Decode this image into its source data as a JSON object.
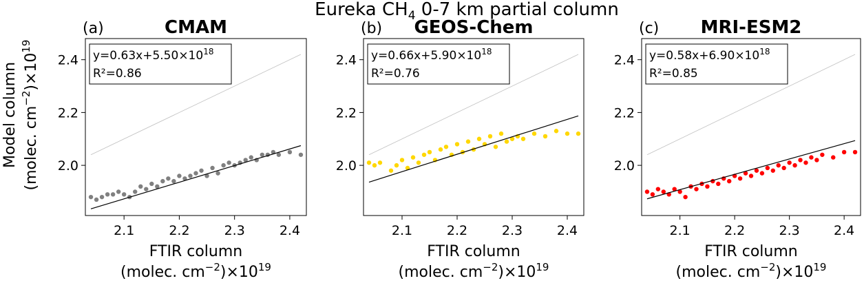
{
  "figure": {
    "title_prefix": "Eureka CH",
    "title_sub": "4",
    "title_suffix": " 0-7 km partial column",
    "ylabel_line1": "Model column",
    "ylabel_line2": "(molec. cm",
    "ylabel_line2_sup": "−2",
    "ylabel_line2_rest": ")×10",
    "ylabel_line2_exp": "19",
    "xlabel_line1": "FTIR column",
    "xlabel_line2": "(molec. cm",
    "xlabel_line2_sup": "−2",
    "xlabel_line2_rest": ")×10",
    "xlabel_line2_exp": "19"
  },
  "colors": {
    "CMAM": "#808080",
    "GEOS-Chem": "#ffd700",
    "MRI-ESM2": "#ff0000",
    "fit": "#000000",
    "one_to_one": "#c0c0c0"
  },
  "chart_data": [
    {
      "type": "scatter",
      "panel_label": "(a)",
      "title": "CMAM",
      "fit_text": "y=0.63x+5.50×10",
      "fit_exp": "18",
      "r2_text": "R²=0.86",
      "fit": {
        "slope": 0.63,
        "intercept": 0.55
      },
      "xlim": [
        2.03,
        2.43
      ],
      "ylim": [
        1.81,
        2.48
      ],
      "xticks": [
        "2.1",
        "2.2",
        "2.3",
        "2.4"
      ],
      "yticks": [
        "2.0",
        "2.2",
        "2.4"
      ],
      "x": [
        2.04,
        2.05,
        2.06,
        2.07,
        2.08,
        2.09,
        2.1,
        2.11,
        2.12,
        2.13,
        2.14,
        2.15,
        2.16,
        2.17,
        2.18,
        2.19,
        2.2,
        2.21,
        2.22,
        2.23,
        2.24,
        2.25,
        2.26,
        2.27,
        2.28,
        2.29,
        2.3,
        2.31,
        2.32,
        2.33,
        2.34,
        2.35,
        2.36,
        2.37,
        2.38,
        2.4,
        2.42
      ],
      "y": [
        1.88,
        1.87,
        1.88,
        1.89,
        1.89,
        1.9,
        1.89,
        1.88,
        1.9,
        1.92,
        1.91,
        1.93,
        1.92,
        1.94,
        1.95,
        1.94,
        1.96,
        1.95,
        1.96,
        1.97,
        1.98,
        1.96,
        1.99,
        1.97,
        2.0,
        2.01,
        2.0,
        2.01,
        2.02,
        2.03,
        2.02,
        2.04,
        2.04,
        2.05,
        2.04,
        2.05,
        2.04
      ]
    },
    {
      "type": "scatter",
      "panel_label": "(b)",
      "title": "GEOS-Chem",
      "fit_text": "y=0.66x+5.90×10",
      "fit_exp": "18",
      "r2_text": "R²=0.76",
      "fit": {
        "slope": 0.66,
        "intercept": 0.59
      },
      "xlim": [
        2.03,
        2.43
      ],
      "ylim": [
        1.81,
        2.48
      ],
      "xticks": [
        "2.1",
        "2.2",
        "2.3",
        "2.4"
      ],
      "yticks": [
        "2.0",
        "2.2",
        "2.4"
      ],
      "x": [
        2.04,
        2.05,
        2.06,
        2.08,
        2.09,
        2.1,
        2.11,
        2.12,
        2.13,
        2.14,
        2.15,
        2.16,
        2.17,
        2.18,
        2.19,
        2.2,
        2.21,
        2.22,
        2.23,
        2.24,
        2.25,
        2.26,
        2.27,
        2.28,
        2.29,
        2.3,
        2.31,
        2.32,
        2.34,
        2.36,
        2.38,
        2.4,
        2.42
      ],
      "y": [
        2.01,
        2.0,
        2.01,
        1.98,
        2.0,
        2.02,
        1.99,
        2.03,
        2.01,
        2.04,
        2.05,
        2.02,
        2.06,
        2.07,
        2.04,
        2.08,
        2.05,
        2.09,
        2.06,
        2.1,
        2.08,
        2.11,
        2.07,
        2.12,
        2.09,
        2.1,
        2.11,
        2.1,
        2.12,
        2.11,
        2.13,
        2.12,
        2.12
      ]
    },
    {
      "type": "scatter",
      "panel_label": "(c)",
      "title": "MRI-ESM2",
      "fit_text": "y=0.58x+6.90×10",
      "fit_exp": "18",
      "r2_text": "R²=0.85",
      "fit": {
        "slope": 0.58,
        "intercept": 0.69
      },
      "xlim": [
        2.03,
        2.43
      ],
      "ylim": [
        1.81,
        2.48
      ],
      "xticks": [
        "2.1",
        "2.2",
        "2.3",
        "2.4"
      ],
      "yticks": [
        "2.0",
        "2.2",
        "2.4"
      ],
      "x": [
        2.04,
        2.05,
        2.06,
        2.07,
        2.08,
        2.09,
        2.1,
        2.11,
        2.12,
        2.13,
        2.14,
        2.15,
        2.16,
        2.17,
        2.18,
        2.19,
        2.2,
        2.21,
        2.22,
        2.23,
        2.24,
        2.25,
        2.26,
        2.27,
        2.28,
        2.29,
        2.3,
        2.31,
        2.32,
        2.33,
        2.34,
        2.35,
        2.36,
        2.38,
        2.4,
        2.42
      ],
      "y": [
        1.9,
        1.89,
        1.91,
        1.9,
        1.89,
        1.91,
        1.9,
        1.88,
        1.92,
        1.91,
        1.93,
        1.92,
        1.94,
        1.93,
        1.95,
        1.94,
        1.96,
        1.95,
        1.97,
        1.96,
        1.98,
        1.97,
        1.99,
        1.98,
        2.0,
        1.99,
        2.01,
        2.0,
        2.02,
        2.01,
        2.03,
        2.02,
        2.04,
        2.03,
        2.05,
        2.05
      ]
    }
  ]
}
